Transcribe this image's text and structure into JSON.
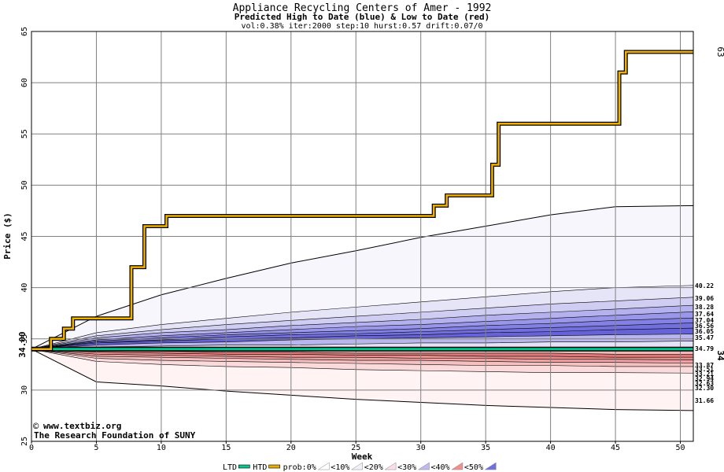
{
  "chart_data": {
    "type": "area",
    "title": "Appliance Recycling Centers of Amer - 1992",
    "subtitle": "Predicted High to Date (blue) &  Low to Date (red)",
    "params": "vol:0.38% iter:2000 step:10 hurst:0.57 drift:0.07/0",
    "xlabel": "Week",
    "ylabel": "Price ($)",
    "xlim": [
      0,
      51
    ],
    "ylim": [
      25,
      65
    ],
    "x_ticks": [
      0,
      5,
      10,
      15,
      20,
      25,
      30,
      35,
      40,
      45,
      50
    ],
    "y_ticks": [
      25,
      30,
      35,
      40,
      45,
      50,
      55,
      60,
      65
    ],
    "grid": true,
    "start_value": 34,
    "start_label": "34.00",
    "htd_end_label": "63",
    "ltd_end_label": "34",
    "credit_line1": "www.textbiz.org",
    "credit_line2": "The Research Foundation of SUNY",
    "copyright_symbol": "©",
    "right_labels": [
      "40.22",
      "39.06",
      "38.28",
      "37.64",
      "37.04",
      "36.56",
      "36.05",
      "35.47",
      "34.79",
      "33.87",
      "33.51",
      "33.21",
      "32.94",
      "32.63",
      "32.30",
      "31.66"
    ],
    "legend": [
      {
        "label": "LTD",
        "color": "#00c890"
      },
      {
        "label": "HTD",
        "color": "#e8b000"
      },
      {
        "label": "prob:0%",
        "color": "#ffffff"
      },
      {
        "label": "<10%",
        "color": "#f4f0fa"
      },
      {
        "label": "<20%",
        "color": "#fcdcec"
      },
      {
        "label": "<30%",
        "color": "#c0b8f0"
      },
      {
        "label": "<40%",
        "color": "#f09090"
      },
      {
        "label": "<50%",
        "color": "#7070e0"
      }
    ],
    "htd_series": {
      "name": "HTD",
      "x": [
        0,
        1.5,
        1.5,
        2.5,
        2.5,
        3.2,
        3.2,
        7.7,
        7.7,
        8.7,
        8.7,
        10.4,
        10.4,
        31,
        31,
        32,
        32,
        35.5,
        35.5,
        36,
        36,
        45.3,
        45.3,
        45.8,
        45.8,
        51
      ],
      "y": [
        34,
        34,
        35,
        35,
        36,
        36,
        37,
        37,
        42,
        42,
        46,
        46,
        47,
        47,
        48,
        48,
        49,
        49,
        52,
        52,
        56,
        56,
        61,
        61,
        63,
        63
      ]
    },
    "ltd_series": {
      "name": "LTD",
      "x": [
        0,
        51
      ],
      "y": [
        34,
        34
      ]
    },
    "bands_x": [
      0,
      5,
      10,
      15,
      20,
      25,
      30,
      35,
      40,
      45,
      51
    ],
    "upper_bands": [
      {
        "name": "outer",
        "color": "#f8f6fd",
        "y": [
          34.0,
          37.2,
          39.3,
          40.9,
          42.4,
          43.6,
          44.9,
          46.0,
          47.1,
          47.9,
          48.0
        ]
      },
      {
        "name": "<10%",
        "color": "#e6e4f7",
        "y": [
          34.0,
          35.6,
          36.4,
          37.0,
          37.6,
          38.1,
          38.6,
          39.1,
          39.6,
          40.0,
          40.22
        ]
      },
      {
        "name": "<20%",
        "color": "#cfcdf2",
        "y": [
          34.0,
          35.3,
          35.9,
          36.4,
          36.8,
          37.2,
          37.6,
          38.0,
          38.4,
          38.7,
          39.06
        ]
      },
      {
        "name": "<30%",
        "color": "#b4b1ee",
        "y": [
          34.0,
          35.1,
          35.6,
          35.9,
          36.3,
          36.6,
          36.9,
          37.3,
          37.6,
          37.9,
          38.28
        ]
      },
      {
        "name": "<40%",
        "color": "#9a97ea",
        "y": [
          34.0,
          34.9,
          35.3,
          35.6,
          35.9,
          36.2,
          36.4,
          36.7,
          37.0,
          37.3,
          37.64
        ]
      },
      {
        "name": "<50%",
        "color": "#8481e4",
        "y": [
          34.0,
          34.8,
          35.1,
          35.4,
          35.6,
          35.8,
          36.0,
          36.3,
          36.5,
          36.8,
          37.04
        ]
      },
      {
        "name": "inner1",
        "color": "#7370de",
        "y": [
          34.0,
          34.7,
          34.9,
          35.2,
          35.4,
          35.5,
          35.7,
          35.9,
          36.1,
          36.3,
          36.56
        ]
      },
      {
        "name": "inner2",
        "color": "#6663d8",
        "y": [
          34.0,
          34.6,
          34.8,
          35.0,
          35.1,
          35.3,
          35.4,
          35.6,
          35.7,
          35.9,
          36.05
        ]
      },
      {
        "name": "inner3",
        "color": "#b8b6ec",
        "y": [
          34.0,
          34.4,
          34.6,
          34.7,
          34.9,
          35.0,
          35.1,
          35.2,
          35.3,
          35.4,
          35.47
        ]
      },
      {
        "name": "inner4",
        "color": "#e4e2f6",
        "y": [
          34.0,
          34.2,
          34.3,
          34.4,
          34.4,
          34.5,
          34.6,
          34.6,
          34.7,
          34.7,
          34.79
        ]
      }
    ],
    "lower_bands": [
      {
        "name": "outer",
        "color": "#fff3f3",
        "y": [
          34.0,
          30.8,
          30.4,
          29.9,
          29.5,
          29.1,
          28.8,
          28.5,
          28.3,
          28.1,
          28.0
        ]
      },
      {
        "name": "<10%",
        "color": "#fadada",
        "y": [
          34.0,
          32.8,
          32.5,
          32.3,
          32.2,
          32.0,
          31.9,
          31.8,
          31.7,
          31.7,
          31.66
        ]
      },
      {
        "name": "<20%",
        "color": "#f4c0c0",
        "y": [
          34.0,
          33.1,
          32.9,
          32.8,
          32.7,
          32.6,
          32.5,
          32.4,
          32.4,
          32.3,
          32.3
        ]
      },
      {
        "name": "<30%",
        "color": "#eea4a4",
        "y": [
          34.0,
          33.3,
          33.2,
          33.1,
          33.0,
          32.9,
          32.9,
          32.8,
          32.7,
          32.7,
          32.63
        ]
      },
      {
        "name": "<40%",
        "color": "#e88c8c",
        "y": [
          34.0,
          33.5,
          33.4,
          33.3,
          33.2,
          33.2,
          33.1,
          33.1,
          33.0,
          33.0,
          32.94
        ]
      },
      {
        "name": "<50%",
        "color": "#e07878",
        "y": [
          34.0,
          33.7,
          33.6,
          33.5,
          33.5,
          33.4,
          33.4,
          33.3,
          33.3,
          33.2,
          33.21
        ]
      },
      {
        "name": "inner1",
        "color": "#f0b8b8",
        "y": [
          34.0,
          33.8,
          33.8,
          33.7,
          33.7,
          33.6,
          33.6,
          33.6,
          33.6,
          33.5,
          33.51
        ]
      },
      {
        "name": "inner2",
        "color": "#fce4e4",
        "y": [
          34.0,
          34.0,
          33.9,
          33.9,
          33.9,
          33.9,
          33.9,
          33.9,
          33.9,
          33.9,
          33.87
        ]
      }
    ]
  }
}
